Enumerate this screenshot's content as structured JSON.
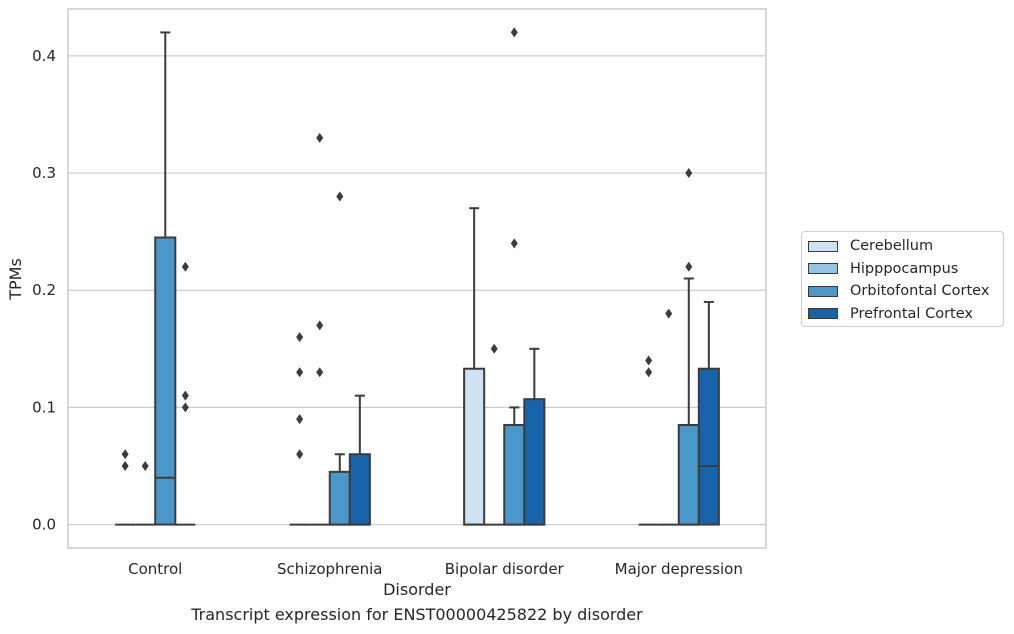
{
  "chart_data": {
    "type": "box",
    "title": "",
    "caption": "Transcript expression for ENST00000425822 by disorder",
    "xlabel": "Disorder",
    "ylabel": "TPMs",
    "ylim": [
      -0.02,
      0.44
    ],
    "yticks": [
      0.0,
      0.1,
      0.2,
      0.3,
      0.4
    ],
    "ytick_labels": [
      "0.0",
      "0.1",
      "0.2",
      "0.3",
      "0.4"
    ],
    "grid": "horizontal",
    "legend_position": "right",
    "categories": [
      "Control",
      "Schizophrenia",
      "Bipolar disorder",
      "Major depression"
    ],
    "series": [
      {
        "name": "Cerebellum",
        "color": "#d0e1f2",
        "boxes": [
          {
            "whislo": 0,
            "q1": 0,
            "med": 0,
            "q3": 0,
            "whishi": 0,
            "fliers": [
              0.05,
              0.06
            ]
          },
          {
            "whislo": 0,
            "q1": 0,
            "med": 0,
            "q3": 0,
            "whishi": 0,
            "fliers": [
              0.06,
              0.09,
              0.13,
              0.16
            ]
          },
          {
            "whislo": 0,
            "q1": 0,
            "med": 0,
            "q3": 0.133,
            "whishi": 0.27,
            "fliers": []
          },
          {
            "whislo": 0,
            "q1": 0,
            "med": 0,
            "q3": 0,
            "whishi": 0,
            "fliers": [
              0.13,
              0.14
            ]
          }
        ]
      },
      {
        "name": "Hipppocampus",
        "color": "#94c4df",
        "boxes": [
          {
            "whislo": 0,
            "q1": 0,
            "med": 0,
            "q3": 0,
            "whishi": 0,
            "fliers": [
              0.05
            ]
          },
          {
            "whislo": 0,
            "q1": 0,
            "med": 0,
            "q3": 0,
            "whishi": 0,
            "fliers": [
              0.13,
              0.17,
              0.33
            ]
          },
          {
            "whislo": 0,
            "q1": 0,
            "med": 0,
            "q3": 0,
            "whishi": 0,
            "fliers": [
              0.15
            ]
          },
          {
            "whislo": 0,
            "q1": 0,
            "med": 0,
            "q3": 0,
            "whishi": 0,
            "fliers": [
              0.18
            ]
          }
        ]
      },
      {
        "name": "Orbitofontal Cortex",
        "color": "#4a98c9",
        "boxes": [
          {
            "whislo": 0,
            "q1": 0,
            "med": 0.04,
            "q3": 0.245,
            "whishi": 0.42,
            "fliers": []
          },
          {
            "whislo": 0,
            "q1": 0,
            "med": 0,
            "q3": 0.045,
            "whishi": 0.06,
            "fliers": [
              0.28
            ]
          },
          {
            "whislo": 0,
            "q1": 0,
            "med": 0,
            "q3": 0.085,
            "whishi": 0.1,
            "fliers": [
              0.24,
              0.42
            ]
          },
          {
            "whislo": 0,
            "q1": 0,
            "med": 0,
            "q3": 0.085,
            "whishi": 0.21,
            "fliers": [
              0.22,
              0.3
            ]
          }
        ]
      },
      {
        "name": "Prefrontal Cortex",
        "color": "#1764ab",
        "boxes": [
          {
            "whislo": 0,
            "q1": 0,
            "med": 0,
            "q3": 0,
            "whishi": 0,
            "fliers": [
              0.1,
              0.11,
              0.22
            ]
          },
          {
            "whislo": 0,
            "q1": 0,
            "med": 0,
            "q3": 0.06,
            "whishi": 0.11,
            "fliers": []
          },
          {
            "whislo": 0,
            "q1": 0,
            "med": 0,
            "q3": 0.107,
            "whishi": 0.15,
            "fliers": []
          },
          {
            "whislo": 0,
            "q1": 0,
            "med": 0.05,
            "q3": 0.133,
            "whishi": 0.19,
            "fliers": []
          }
        ]
      }
    ]
  }
}
